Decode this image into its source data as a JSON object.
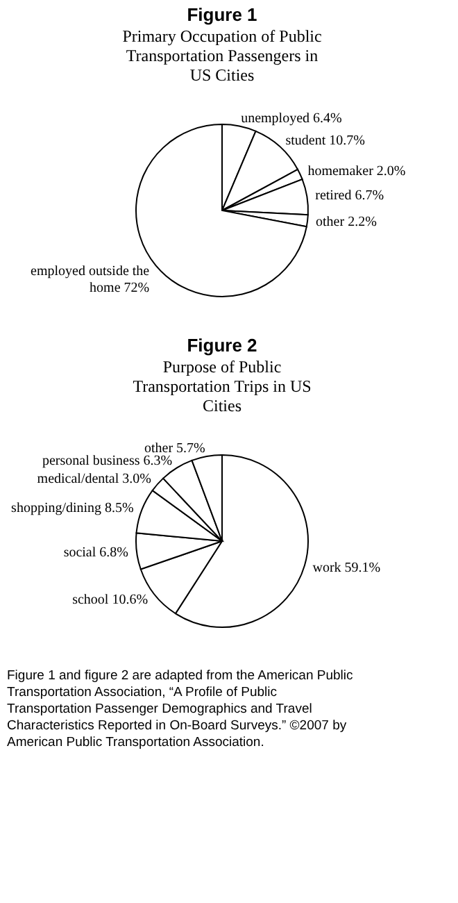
{
  "chart_data": [
    {
      "type": "pie",
      "title": "Figure 1",
      "subtitle": "Primary Occupation of Public Transportation Passengers in US Cities",
      "categories": [
        "unemployed",
        "student",
        "homemaker",
        "retired",
        "other",
        "employed outside the home"
      ],
      "values": [
        6.4,
        10.7,
        2.0,
        6.7,
        2.2,
        72
      ],
      "value_labels": [
        "6.4%",
        "10.7%",
        "2.0%",
        "6.7%",
        "2.2%",
        "72%"
      ],
      "colors": [
        "#ffffff",
        "#ffffff",
        "#ffffff",
        "#ffffff",
        "#ffffff",
        "#ffffff"
      ]
    },
    {
      "type": "pie",
      "title": "Figure 2",
      "subtitle": "Purpose of Public Transportation Trips in US Cities",
      "categories": [
        "work",
        "school",
        "social",
        "shopping/dining",
        "medical/dental",
        "personal business",
        "other"
      ],
      "values": [
        59.1,
        10.6,
        6.8,
        8.5,
        3.0,
        6.3,
        5.7
      ],
      "value_labels": [
        "59.1%",
        "10.6%",
        "6.8%",
        "8.5%",
        "3.0%",
        "6.3%",
        "5.7%"
      ],
      "colors": [
        "#ffffff",
        "#ffffff",
        "#ffffff",
        "#ffffff",
        "#ffffff",
        "#ffffff",
        "#ffffff"
      ],
      "annotations": [
        "Figure 1 and figure 2 are adapted from the American Public Transportation Association, “A Profile of Public Transportation Passenger Demographics and Travel Characteristics Reported in On-Board Surveys.” ©2007 by American Public Transportation Association."
      ]
    }
  ]
}
